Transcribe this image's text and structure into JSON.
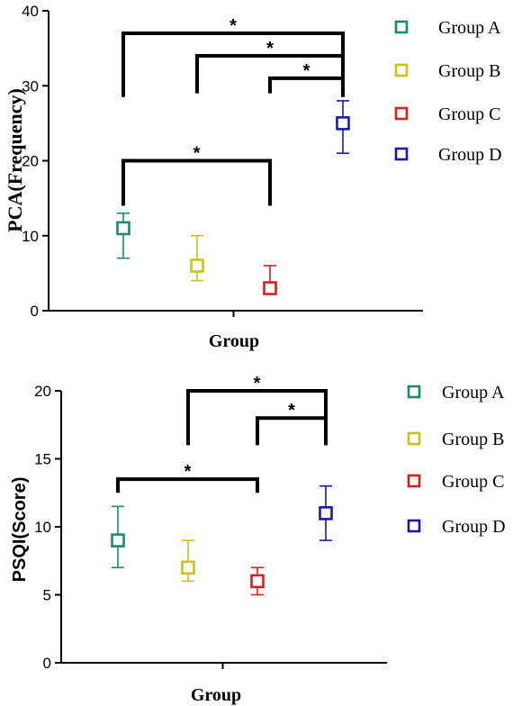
{
  "chart_data": [
    {
      "type": "scatter",
      "ylabel": "PCA(Frequency)",
      "xlabel": "Group",
      "ylim": [
        0,
        40
      ],
      "yticks": [
        "0",
        "10",
        "20",
        "30",
        "40"
      ],
      "series": [
        {
          "name": "Group A",
          "color": "#1a8a6a",
          "value": 11,
          "err_low": 7,
          "err_high": 13
        },
        {
          "name": "Group B",
          "color": "#c9c31a",
          "value": 6,
          "err_low": 4,
          "err_high": 10
        },
        {
          "name": "Group C",
          "color": "#d62020",
          "value": 3,
          "err_low": 3,
          "err_high": 6
        },
        {
          "name": "Group D",
          "color": "#1a1aa8",
          "value": 25,
          "err_low": 21,
          "err_high": 28
        }
      ],
      "significance": [
        {
          "from": 0,
          "to": 3,
          "y": 37,
          "foot": 28.5,
          "label": "*"
        },
        {
          "from": 1,
          "to": 3,
          "y": 34,
          "foot": 29,
          "label": "*"
        },
        {
          "from": 2,
          "to": 3,
          "y": 31,
          "foot": 29,
          "label": "*"
        },
        {
          "from": 0,
          "to": 2,
          "y": 20,
          "foot": 14,
          "label": "*"
        }
      ]
    },
    {
      "type": "scatter",
      "ylabel": "PSQI(Score)",
      "xlabel": "Group",
      "ylim": [
        0,
        20
      ],
      "yticks": [
        "0",
        "5",
        "10",
        "15",
        "20"
      ],
      "series": [
        {
          "name": "Group A",
          "color": "#1a8a6a",
          "value": 9,
          "err_low": 7,
          "err_high": 11.5
        },
        {
          "name": "Group B",
          "color": "#c9c31a",
          "value": 7,
          "err_low": 6,
          "err_high": 9
        },
        {
          "name": "Group C",
          "color": "#d62020",
          "value": 6,
          "err_low": 5,
          "err_high": 7
        },
        {
          "name": "Group D",
          "color": "#1a1aa8",
          "value": 11,
          "err_low": 9,
          "err_high": 13
        }
      ],
      "significance": [
        {
          "from": 1,
          "to": 3,
          "y": 20,
          "foot": 16,
          "label": "*"
        },
        {
          "from": 2,
          "to": 3,
          "y": 18,
          "foot": 16,
          "label": "*"
        },
        {
          "from": 0,
          "to": 2,
          "y": 13.5,
          "foot": 12.5,
          "label": "*"
        }
      ]
    }
  ]
}
